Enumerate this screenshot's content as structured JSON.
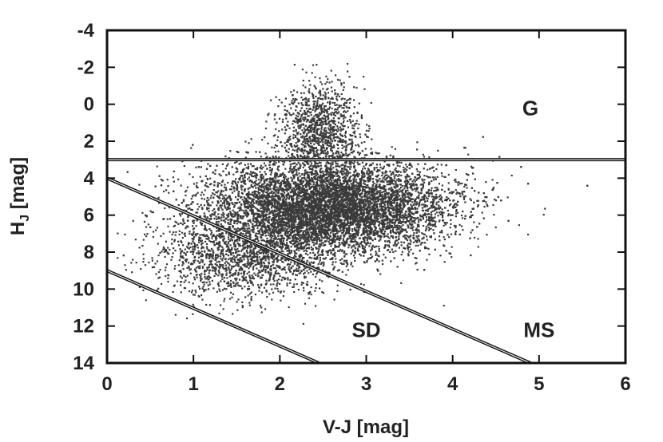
{
  "chart_data": {
    "type": "scatter",
    "title": "",
    "xlabel": "V-J [mag]",
    "ylabel_main": "H",
    "ylabel_sub": "J",
    "ylabel_rest": " [mag]",
    "xlim": [
      0,
      6
    ],
    "ylim": [
      14,
      -4
    ],
    "y_inverted": true,
    "grid": false,
    "x_ticks": [
      "0",
      "1",
      "2",
      "3",
      "4",
      "5",
      "6"
    ],
    "y_ticks": [
      "-4",
      "-2",
      "0",
      "2",
      "4",
      "6",
      "8",
      "10",
      "12",
      "14"
    ],
    "x_tick_values": [
      0,
      1,
      2,
      3,
      4,
      5,
      6
    ],
    "y_tick_values": [
      -4,
      -2,
      0,
      2,
      4,
      6,
      8,
      10,
      12,
      14
    ],
    "point_color": "#3a3a3a",
    "line_color": "#1a1a1a",
    "dividers": [
      {
        "name": "horizontal",
        "x": [
          0,
          6
        ],
        "y": [
          3.0,
          3.0
        ]
      },
      {
        "name": "upper-diagonal",
        "x": [
          0,
          4.9
        ],
        "y": [
          4.0,
          14.0
        ]
      },
      {
        "name": "lower-diagonal",
        "x": [
          0,
          2.45
        ],
        "y": [
          9.0,
          14.0
        ]
      }
    ],
    "regions": [
      {
        "label": "G",
        "x": 4.9,
        "y": 0.2
      },
      {
        "label": "SD",
        "x": 3.0,
        "y": 12.2
      },
      {
        "label": "MS",
        "x": 5.0,
        "y": 12.2
      }
    ],
    "point_clusters": [
      {
        "name": "dwarf-bulk",
        "cx": 2.55,
        "cy": 5.5,
        "sx": 0.7,
        "sy": 1.25,
        "n": 9000
      },
      {
        "name": "faint-tail",
        "cx": 1.6,
        "cy": 8.2,
        "sx": 0.55,
        "sy": 1.1,
        "n": 1600
      },
      {
        "name": "giant-plume",
        "cx": 2.45,
        "cy": 1.4,
        "sx": 0.22,
        "sy": 1.3,
        "n": 1100
      }
    ]
  }
}
